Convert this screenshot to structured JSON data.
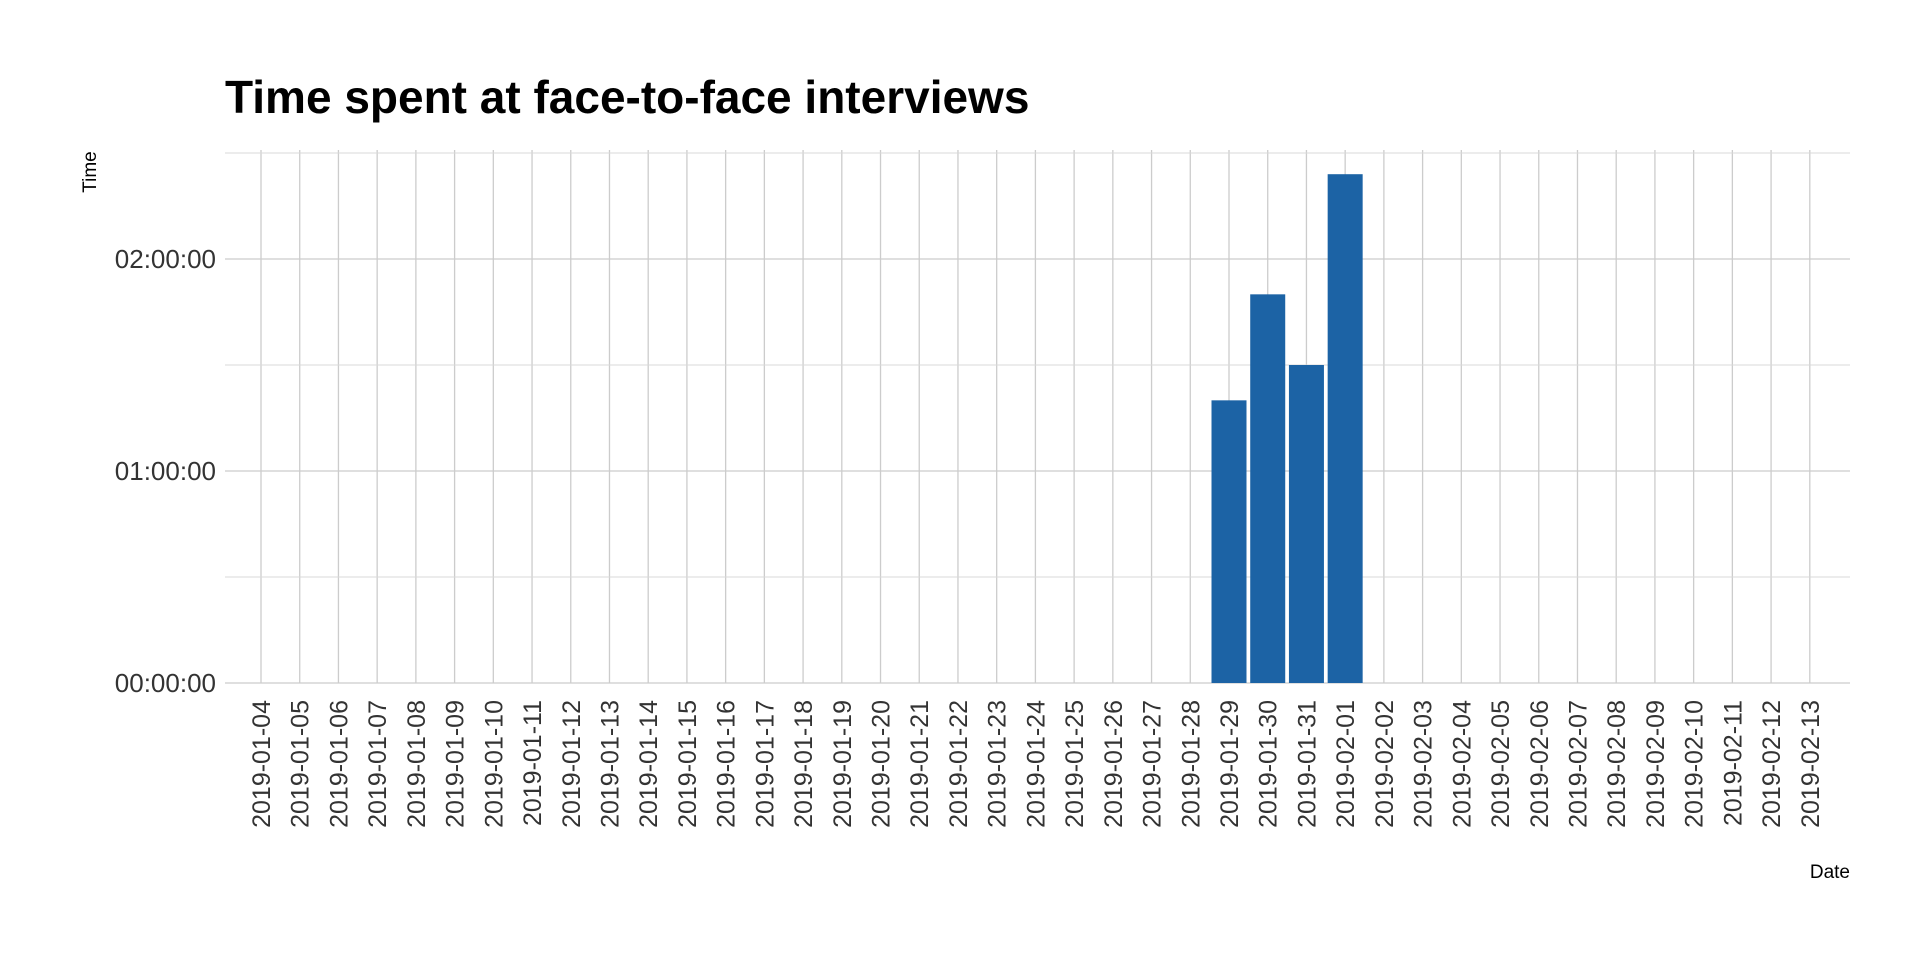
{
  "chart_data": {
    "type": "bar",
    "title": "Time spent at face-to-face interviews",
    "xlabel": "Date",
    "ylabel": "Time",
    "categories": [
      "2019-01-04",
      "2019-01-05",
      "2019-01-06",
      "2019-01-07",
      "2019-01-08",
      "2019-01-09",
      "2019-01-10",
      "2019-01-11",
      "2019-01-12",
      "2019-01-13",
      "2019-01-14",
      "2019-01-15",
      "2019-01-16",
      "2019-01-17",
      "2019-01-18",
      "2019-01-19",
      "2019-01-20",
      "2019-01-21",
      "2019-01-22",
      "2019-01-23",
      "2019-01-24",
      "2019-01-25",
      "2019-01-26",
      "2019-01-27",
      "2019-01-28",
      "2019-01-29",
      "2019-01-30",
      "2019-01-31",
      "2019-02-01",
      "2019-02-02",
      "2019-02-03",
      "2019-02-04",
      "2019-02-05",
      "2019-02-06",
      "2019-02-07",
      "2019-02-08",
      "2019-02-09",
      "2019-02-10",
      "2019-02-11",
      "2019-02-12",
      "2019-02-13"
    ],
    "bars": [
      {
        "date": "2019-01-29",
        "value": "01:20:00"
      },
      {
        "date": "2019-01-30",
        "value": "01:50:00"
      },
      {
        "date": "2019-01-31",
        "value": "01:30:00"
      },
      {
        "date": "2019-02-01",
        "value": "02:24:00"
      }
    ],
    "y_ticks": [
      "00:00:00",
      "01:00:00",
      "02:00:00"
    ],
    "ylim": [
      "00:00:00",
      "02:30:00"
    ],
    "grid": true,
    "bar_color": "#1c63a5"
  }
}
